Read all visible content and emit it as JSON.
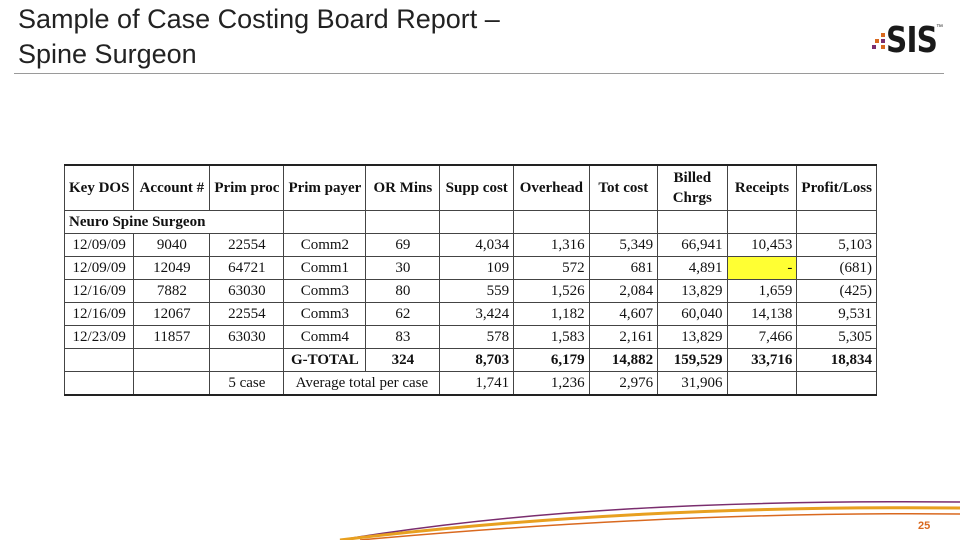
{
  "slide": {
    "title_line1": "Sample of Case Costing Board Report –",
    "title_line2": "Spine Surgeon",
    "logo_text": "SIS",
    "logo_tm": "™",
    "page_number": "25",
    "colors": {
      "accent": "#d9691f",
      "highlight": "#ffff33"
    }
  },
  "table": {
    "headers": [
      "Key DOS",
      "Account #",
      "Prim proc",
      "Prim payer",
      "OR Mins",
      "Supp cost",
      "Overhead",
      "Tot cost",
      "Billed Chrgs",
      "Receipts",
      "Profit/Loss"
    ],
    "group_label": "Neuro Spine Surgeon",
    "rows": [
      [
        "12/09/09",
        "9040",
        "22554",
        "Comm2",
        "69",
        "4,034",
        "1,316",
        "5,349",
        "66,941",
        "10,453",
        "5,103"
      ],
      [
        "12/09/09",
        "12049",
        "64721",
        "Comm1",
        "30",
        "109",
        "572",
        "681",
        "4,891",
        "-",
        "(681)"
      ],
      [
        "12/16/09",
        "7882",
        "63030",
        "Comm3",
        "80",
        "559",
        "1,526",
        "2,084",
        "13,829",
        "1,659",
        "(425)"
      ],
      [
        "12/16/09",
        "12067",
        "22554",
        "Comm3",
        "62",
        "3,424",
        "1,182",
        "4,607",
        "60,040",
        "14,138",
        "9,531"
      ],
      [
        "12/23/09",
        "11857",
        "63030",
        "Comm4",
        "83",
        "578",
        "1,583",
        "2,161",
        "13,829",
        "7,466",
        "5,305"
      ]
    ],
    "total": {
      "label": "G-TOTAL",
      "or_mins": "324",
      "supp_cost": "8,703",
      "overhead": "6,179",
      "tot_cost": "14,882",
      "billed": "159,529",
      "receipts": "33,716",
      "profit": "18,834"
    },
    "average": {
      "cases": "5 case",
      "label": "Average total per case",
      "supp_cost": "1,741",
      "overhead": "1,236",
      "tot_cost": "2,976",
      "billed": "31,906"
    }
  }
}
